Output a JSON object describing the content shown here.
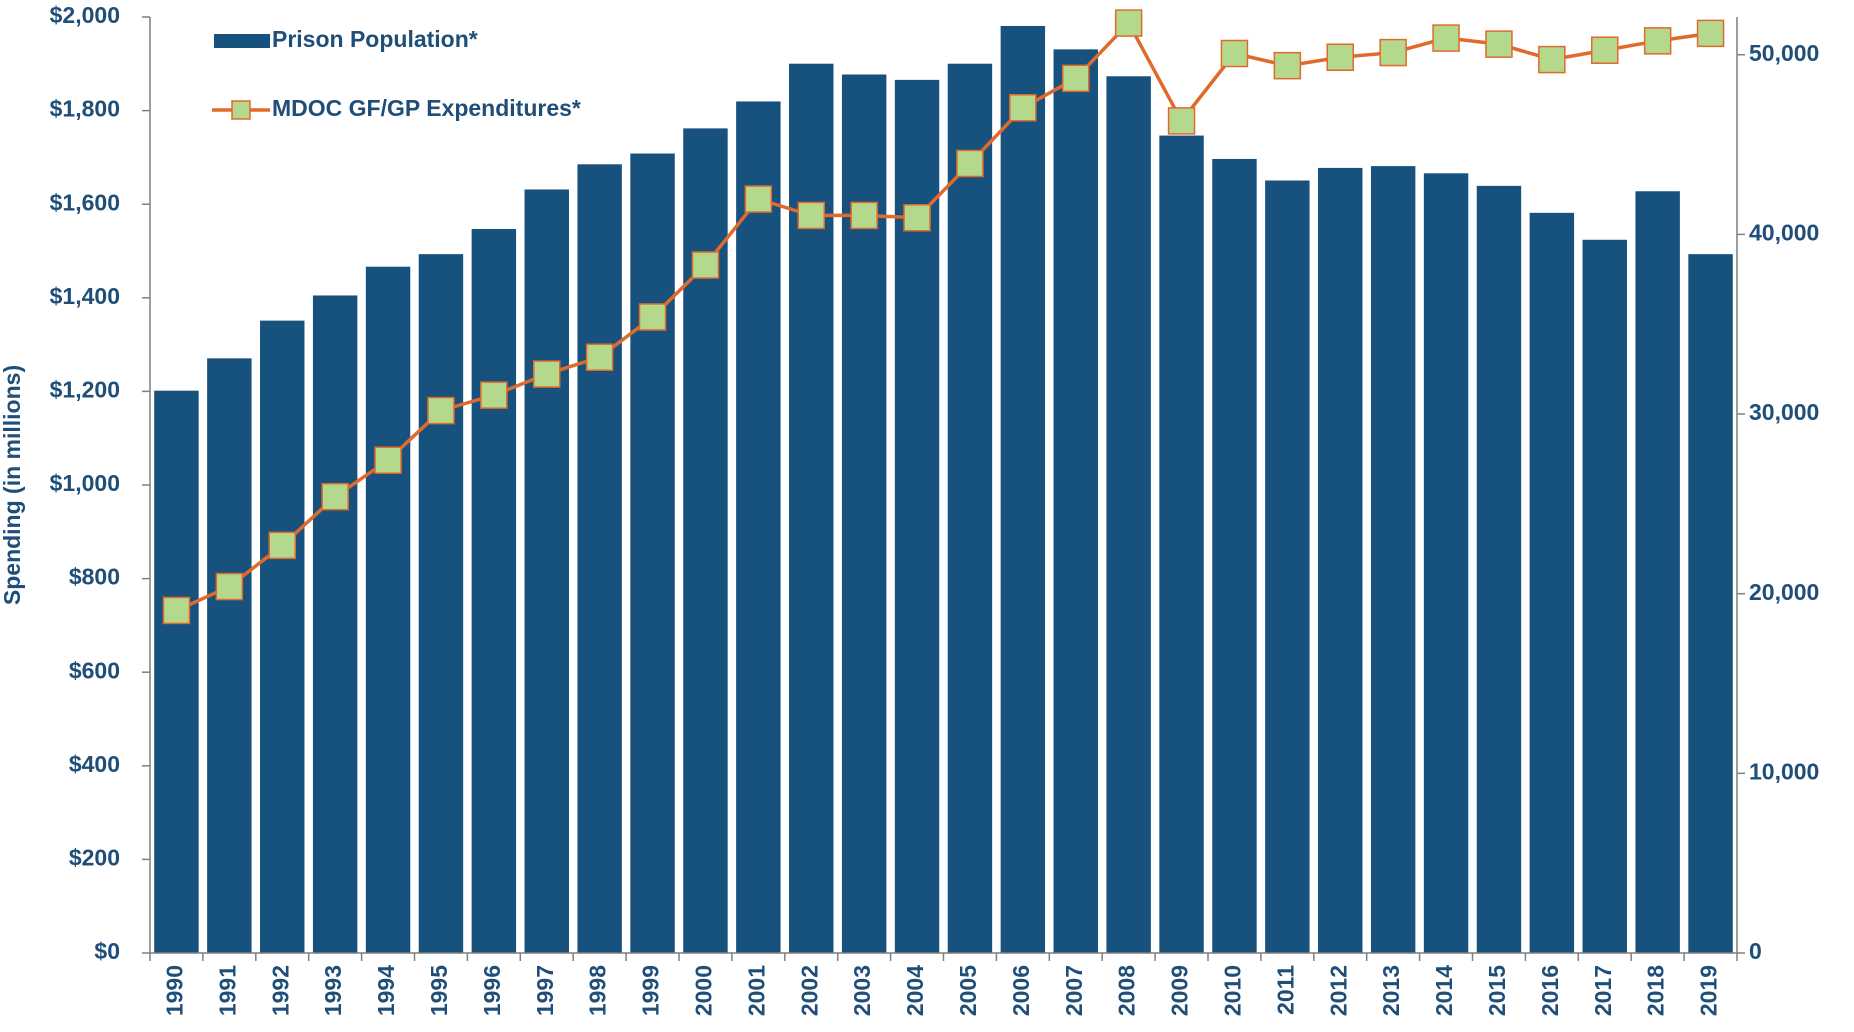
{
  "chart_data": {
    "type": "bar_line",
    "y_axis_label": "Spending (in millions)",
    "categories": [
      "1990",
      "1991",
      "1992",
      "1993",
      "1994",
      "1995",
      "1996",
      "1997",
      "1998",
      "1999",
      "2000",
      "2001",
      "2002",
      "2003",
      "2004",
      "2005",
      "2006",
      "2007",
      "2008",
      "2009",
      "2010",
      "2011",
      "2012",
      "2013",
      "2014",
      "2015",
      "2016",
      "2017",
      "2018",
      "2019"
    ],
    "series": [
      {
        "name": "Prison Population*",
        "type": "bar",
        "axis": "y2",
        "color": "#17517e",
        "values": [
          31300,
          33100,
          35200,
          36600,
          38200,
          38900,
          40300,
          42500,
          43900,
          44500,
          45900,
          47400,
          49500,
          48900,
          48600,
          49500,
          51600,
          50300,
          48800,
          45500,
          44200,
          43000,
          43700,
          43800,
          43400,
          42700,
          41200,
          39700,
          42400,
          38900
        ]
      },
      {
        "name": "MDOC GF/GP Expenditures*",
        "type": "line",
        "axis": "y",
        "color": "#e06a2c",
        "marker_color": "#b5d98c",
        "values": [
          732,
          783,
          871,
          975,
          1053,
          1159,
          1192,
          1237,
          1273,
          1359,
          1470,
          1611,
          1576,
          1576,
          1571,
          1687,
          1806,
          1869,
          1987,
          1778,
          1922,
          1896,
          1914,
          1924,
          1955,
          1942,
          1909,
          1929,
          1949,
          1965
        ]
      }
    ],
    "ylim": [
      0,
      2000
    ],
    "yticks": [
      {
        "value": 0,
        "label": "$0"
      },
      {
        "value": 200,
        "label": "$200"
      },
      {
        "value": 400,
        "label": "$400"
      },
      {
        "value": 600,
        "label": "$600"
      },
      {
        "value": 800,
        "label": "$800"
      },
      {
        "value": 1000,
        "label": "$1,000"
      },
      {
        "value": 1200,
        "label": "$1,200"
      },
      {
        "value": 1400,
        "label": "$1,400"
      },
      {
        "value": 1600,
        "label": "$1,600"
      },
      {
        "value": 1800,
        "label": "$1,800"
      },
      {
        "value": 2000,
        "label": "$2,000"
      }
    ],
    "y2lim": [
      0,
      52100
    ],
    "y2ticks": [
      0,
      {
        "value": 10000,
        "label": "10,000"
      },
      {
        "value": 20000,
        "label": "20,000"
      },
      {
        "value": 30000,
        "label": "30,000"
      },
      {
        "value": 40000,
        "label": "40,000"
      },
      {
        "value": 50000,
        "label": "50,000"
      }
    ],
    "legend": "upper left"
  }
}
